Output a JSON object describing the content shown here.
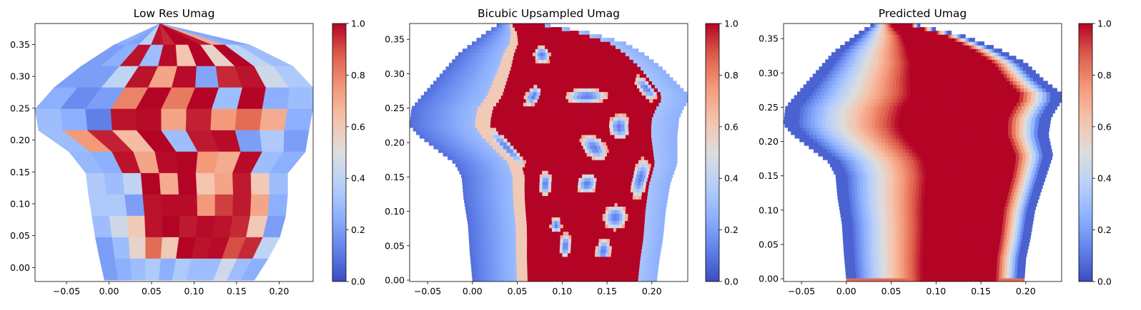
{
  "chart_data": [
    {
      "type": "heatmap",
      "title": "Low Res Umag",
      "xlim": [
        -0.087,
        0.24
      ],
      "ylim": [
        -0.022,
        0.383
      ],
      "xticks": [
        -0.05,
        0.0,
        0.05,
        0.1,
        0.15,
        0.2
      ],
      "xtick_labels": [
        "−0.05",
        "0.00",
        "0.05",
        "0.10",
        "0.15",
        "0.20"
      ],
      "yticks": [
        0.0,
        0.05,
        0.1,
        0.15,
        0.2,
        0.25,
        0.3,
        0.35
      ],
      "ytick_labels": [
        "0.00",
        "0.05",
        "0.10",
        "0.15",
        "0.20",
        "0.25",
        "0.30",
        "0.35"
      ],
      "colorbar": {
        "min": 0,
        "max": 1,
        "ticks": [
          0,
          0.2,
          0.4,
          0.6,
          0.8,
          1.0
        ],
        "tick_labels": [
          "0.0",
          "0.2",
          "0.4",
          "0.6",
          "0.8",
          "1.0"
        ],
        "colormap": "coolwarm"
      },
      "shape_left": [
        [
          -0.005,
          -0.022
        ],
        [
          -0.012,
          0.02
        ],
        [
          -0.018,
          0.06
        ],
        [
          -0.022,
          0.1
        ],
        [
          -0.028,
          0.14
        ],
        [
          -0.025,
          0.165
        ],
        [
          -0.045,
          0.18
        ],
        [
          -0.07,
          0.2
        ],
        [
          -0.087,
          0.22
        ],
        [
          -0.087,
          0.25
        ],
        [
          -0.075,
          0.27
        ],
        [
          -0.058,
          0.29
        ],
        [
          -0.038,
          0.31
        ],
        [
          -0.02,
          0.33
        ],
        [
          0.0,
          0.345
        ],
        [
          0.02,
          0.36
        ],
        [
          0.04,
          0.375
        ],
        [
          0.06,
          0.383
        ]
      ],
      "shape_right": [
        [
          0.06,
          0.383
        ],
        [
          0.1,
          0.375
        ],
        [
          0.15,
          0.36
        ],
        [
          0.195,
          0.33
        ],
        [
          0.225,
          0.31
        ],
        [
          0.24,
          0.3
        ],
        [
          0.24,
          0.25
        ],
        [
          0.235,
          0.23
        ],
        [
          0.235,
          0.19
        ],
        [
          0.225,
          0.17
        ],
        [
          0.21,
          0.15
        ],
        [
          0.21,
          0.1
        ],
        [
          0.205,
          0.06
        ],
        [
          0.195,
          0.03
        ],
        [
          0.18,
          0.0
        ],
        [
          0.17,
          -0.022
        ]
      ],
      "rows": 12,
      "cols": 11,
      "cell_values": [
        [
          0.25,
          0.22,
          0.38,
          0.98,
          0.95,
          1,
          1,
          0.97,
          0.7,
          0.25,
          0.22
        ],
        [
          0.2,
          0.25,
          0.98,
          0.3,
          0.99,
          0.62,
          1,
          0.55,
          1,
          0.4,
          0.3
        ],
        [
          0.2,
          0.2,
          0.4,
          0.98,
          0.72,
          0.99,
          0.22,
          0.95,
          0.98,
          0.45,
          0.35
        ],
        [
          0.25,
          0.15,
          0.2,
          0.8,
          1,
          0.82,
          1,
          0.3,
          1,
          0.25,
          0.3
        ],
        [
          0.3,
          0.25,
          0.12,
          0.98,
          0.99,
          0.72,
          0.96,
          0.75,
          0.85,
          0.7,
          0.25
        ],
        [
          0.3,
          0.75,
          0.96,
          0.65,
          1,
          0.3,
          0.97,
          0.99,
          0.2,
          0.35,
          0.2
        ],
        [
          0.28,
          0.25,
          0.98,
          0.72,
          0.99,
          1,
          0.75,
          0.7,
          0.99,
          0.3,
          0.25
        ],
        [
          0.35,
          0.3,
          0.4,
          1,
          0.7,
          1,
          0.62,
          0.72,
          0.97,
          0.6,
          0.3
        ],
        [
          0.35,
          0.35,
          0.2,
          0.98,
          0.99,
          0.99,
          0.75,
          0.92,
          0.97,
          0.72,
          0.25
        ],
        [
          0.3,
          0.45,
          0.6,
          0.98,
          1,
          0.97,
          0.99,
          0.98,
          0.95,
          0.6,
          0.2
        ],
        [
          0.2,
          0.3,
          0.55,
          0.85,
          0.6,
          1,
          0.98,
          0.99,
          0.9,
          0.95,
          0.4
        ],
        [
          0.2,
          0.25,
          0.3,
          0.35,
          0.25,
          0.35,
          0.3,
          0.3,
          0.45,
          0.3,
          0.25
        ]
      ]
    },
    {
      "type": "heatmap",
      "title": "Bicubic Upsampled Umag",
      "xlim": [
        -0.07,
        0.24
      ],
      "ylim": [
        -0.002,
        0.373
      ],
      "xticks": [
        -0.05,
        0.0,
        0.05,
        0.1,
        0.15,
        0.2
      ],
      "xtick_labels": [
        "−0.05",
        "0.00",
        "0.05",
        "0.10",
        "0.15",
        "0.20"
      ],
      "yticks": [
        0.0,
        0.05,
        0.1,
        0.15,
        0.2,
        0.25,
        0.3,
        0.35
      ],
      "ytick_labels": [
        "0.00",
        "0.05",
        "0.10",
        "0.15",
        "0.20",
        "0.25",
        "0.30",
        "0.35"
      ],
      "colorbar": {
        "min": 0,
        "max": 1,
        "ticks": [
          0,
          0.2,
          0.4,
          0.6,
          0.8,
          1.0
        ],
        "tick_labels": [
          "0.0",
          "0.2",
          "0.4",
          "0.6",
          "0.8",
          "1.0"
        ],
        "colormap": "coolwarm"
      },
      "shape_left": [
        [
          0.0,
          -0.002
        ],
        [
          -0.003,
          0.04
        ],
        [
          -0.005,
          0.08
        ],
        [
          -0.01,
          0.12
        ],
        [
          -0.012,
          0.15
        ],
        [
          -0.02,
          0.17
        ],
        [
          -0.04,
          0.19
        ],
        [
          -0.06,
          0.21
        ],
        [
          -0.07,
          0.225
        ],
        [
          -0.068,
          0.25
        ],
        [
          -0.055,
          0.27
        ],
        [
          -0.035,
          0.3
        ],
        [
          -0.015,
          0.33
        ],
        [
          0.0,
          0.345
        ],
        [
          0.015,
          0.36
        ],
        [
          0.03,
          0.373
        ]
      ],
      "shape_right": [
        [
          0.03,
          0.373
        ],
        [
          0.08,
          0.372
        ],
        [
          0.13,
          0.36
        ],
        [
          0.17,
          0.345
        ],
        [
          0.19,
          0.33
        ],
        [
          0.21,
          0.31
        ],
        [
          0.225,
          0.29
        ],
        [
          0.24,
          0.27
        ],
        [
          0.24,
          0.26
        ],
        [
          0.235,
          0.25
        ],
        [
          0.23,
          0.235
        ],
        [
          0.228,
          0.21
        ],
        [
          0.228,
          0.17
        ],
        [
          0.22,
          0.14
        ],
        [
          0.215,
          0.1
        ],
        [
          0.212,
          0.06
        ],
        [
          0.208,
          0.03
        ],
        [
          0.205,
          -0.002
        ]
      ],
      "regions": [
        {
          "kind": "band",
          "comment": "red"
        },
        {
          "kind": "blobs",
          "comment": "blue"
        }
      ]
    },
    {
      "type": "heatmap",
      "title": "Predicted Umag",
      "xlim": [
        -0.07,
        0.24
      ],
      "ylim": [
        -0.004,
        0.372
      ],
      "xticks": [
        -0.05,
        0.0,
        0.05,
        0.1,
        0.15,
        0.2
      ],
      "xtick_labels": [
        "−0.05",
        "0.00",
        "0.05",
        "0.10",
        "0.15",
        "0.20"
      ],
      "yticks": [
        0.0,
        0.05,
        0.1,
        0.15,
        0.2,
        0.25,
        0.3,
        0.35
      ],
      "ytick_labels": [
        "0.00",
        "0.05",
        "0.10",
        "0.15",
        "0.20",
        "0.25",
        "0.30",
        "0.35"
      ],
      "colorbar": {
        "min": 0,
        "max": 1,
        "ticks": [
          0,
          0.2,
          0.4,
          0.6,
          0.8,
          1.0
        ],
        "tick_labels": [
          "0.0",
          "0.2",
          "0.4",
          "0.6",
          "0.8",
          "1.0"
        ],
        "colormap": "coolwarm"
      },
      "shape_left": [
        [
          0.0,
          -0.004
        ],
        [
          -0.003,
          0.04
        ],
        [
          -0.005,
          0.08
        ],
        [
          -0.01,
          0.12
        ],
        [
          -0.012,
          0.15
        ],
        [
          -0.02,
          0.17
        ],
        [
          -0.04,
          0.19
        ],
        [
          -0.06,
          0.21
        ],
        [
          -0.07,
          0.225
        ],
        [
          -0.068,
          0.25
        ],
        [
          -0.055,
          0.27
        ],
        [
          -0.035,
          0.3
        ],
        [
          -0.015,
          0.33
        ],
        [
          0.0,
          0.345
        ],
        [
          0.015,
          0.36
        ],
        [
          0.03,
          0.372
        ]
      ],
      "shape_right": [
        [
          0.03,
          0.372
        ],
        [
          0.08,
          0.37
        ],
        [
          0.13,
          0.355
        ],
        [
          0.17,
          0.335
        ],
        [
          0.2,
          0.315
        ],
        [
          0.22,
          0.29
        ],
        [
          0.24,
          0.27
        ],
        [
          0.24,
          0.26
        ],
        [
          0.235,
          0.25
        ],
        [
          0.228,
          0.235
        ],
        [
          0.225,
          0.21
        ],
        [
          0.23,
          0.18
        ],
        [
          0.22,
          0.14
        ],
        [
          0.21,
          0.1
        ],
        [
          0.205,
          0.06
        ],
        [
          0.2,
          0.03
        ],
        [
          0.198,
          -0.004
        ]
      ]
    }
  ]
}
